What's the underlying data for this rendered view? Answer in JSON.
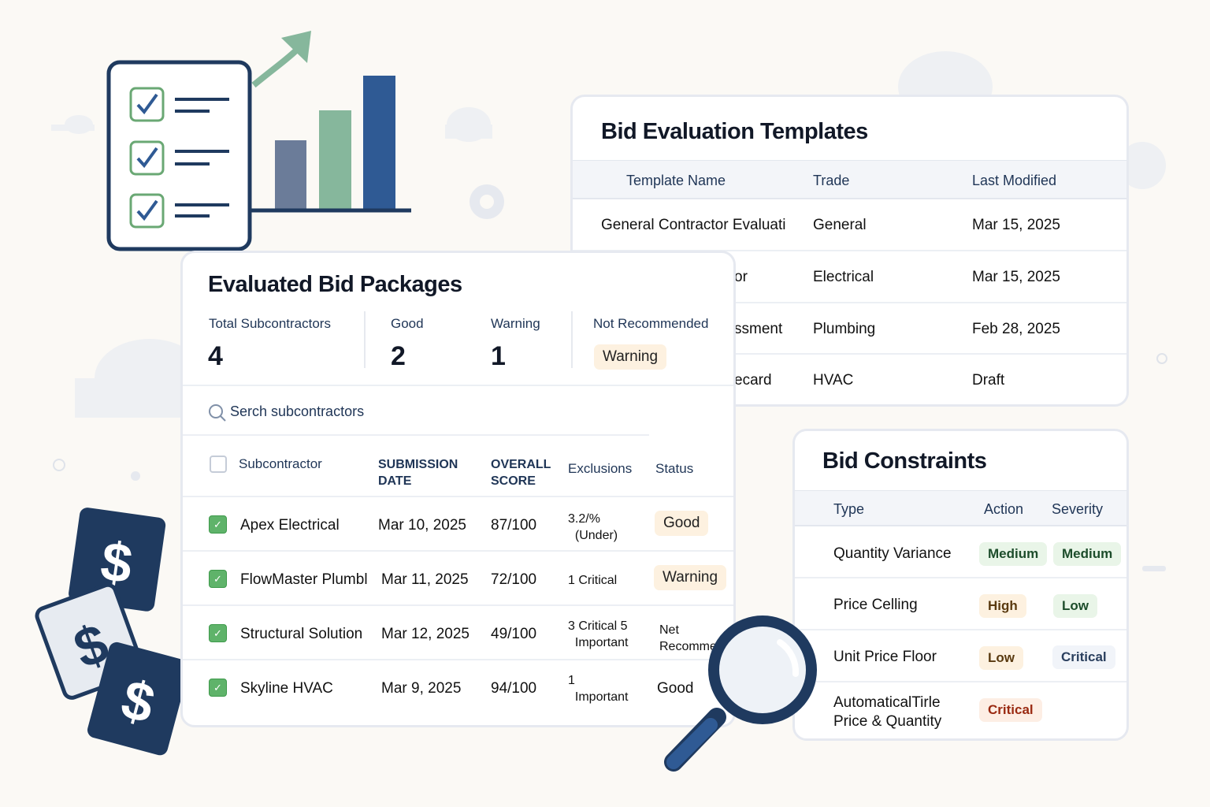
{
  "templates": {
    "title": "Bid Evaluation Templates",
    "columns": [
      "Template Name",
      "Trade",
      "Last Modified"
    ],
    "rows": [
      {
        "name": "General Contractor Evaluati",
        "trade": "General",
        "modified": "Mar 15, 2025"
      },
      {
        "name": "or",
        "trade": "Electrical",
        "modified": "Mar 15, 2025"
      },
      {
        "name": "ssment",
        "trade": "Plumbing",
        "modified": "Feb 28, 2025"
      },
      {
        "name": "ecard",
        "trade": "HVAC",
        "modified": "Draft"
      }
    ]
  },
  "packages": {
    "title": "Evaluated Bid Packages",
    "stats": [
      {
        "label": "Total Subcontractors",
        "value": "4"
      },
      {
        "label": "Good",
        "value": "2"
      },
      {
        "label": "Warning",
        "value": "1"
      },
      {
        "label": "Not Recommended",
        "badge": "Warning"
      }
    ],
    "search_placeholder": "Serch subcontractors",
    "columns": {
      "subcontractor": "Subcontractor",
      "date": [
        "SUBMISSION",
        "DATE"
      ],
      "score": [
        "OVERALL",
        "SCORE"
      ],
      "exclusions": "Exclusions",
      "status": "Status"
    },
    "rows": [
      {
        "name": "Apex Electrical",
        "date": "Mar 10, 2025",
        "score": "87/100",
        "excl": [
          "3.2/%",
          "(Under)"
        ],
        "status": "Good",
        "checked": true
      },
      {
        "name": "FlowMaster Plumbl",
        "date": "Mar 11, 2025",
        "score": "72/100",
        "excl": [
          "1 Critical",
          ""
        ],
        "status": "Warning",
        "checked": true
      },
      {
        "name": "Structural Solution",
        "date": "Mar 12, 2025",
        "score": "49/100",
        "excl": [
          "3 Critical 5",
          "Important"
        ],
        "status": "Net Recomme",
        "checked": true
      },
      {
        "name": "Skyline HVAC",
        "date": "Mar 9, 2025",
        "score": "94/100",
        "excl": [
          "1",
          "Important"
        ],
        "status": "Good",
        "checked": true
      }
    ]
  },
  "constraints": {
    "title": "Bid Constraints",
    "columns": [
      "Type",
      "Action",
      "Severity"
    ],
    "rows": [
      {
        "type": "Quantity Variance",
        "action": "Medium",
        "severity": "Medium"
      },
      {
        "type": "Price Celling",
        "action": "High",
        "severity": "Low"
      },
      {
        "type": "Unit Price Floor",
        "action": "Low",
        "severity": "Critical"
      },
      {
        "type": "AutomaticalTirle Price & Quantity",
        "action": "Critical",
        "severity": ""
      }
    ]
  },
  "colors": {
    "navy": "#1f3a5f",
    "green": "#5fb36a",
    "accent_bar": "#2f5a94",
    "bar_green": "#86b79c",
    "bar_grey": "#6b7c99"
  }
}
